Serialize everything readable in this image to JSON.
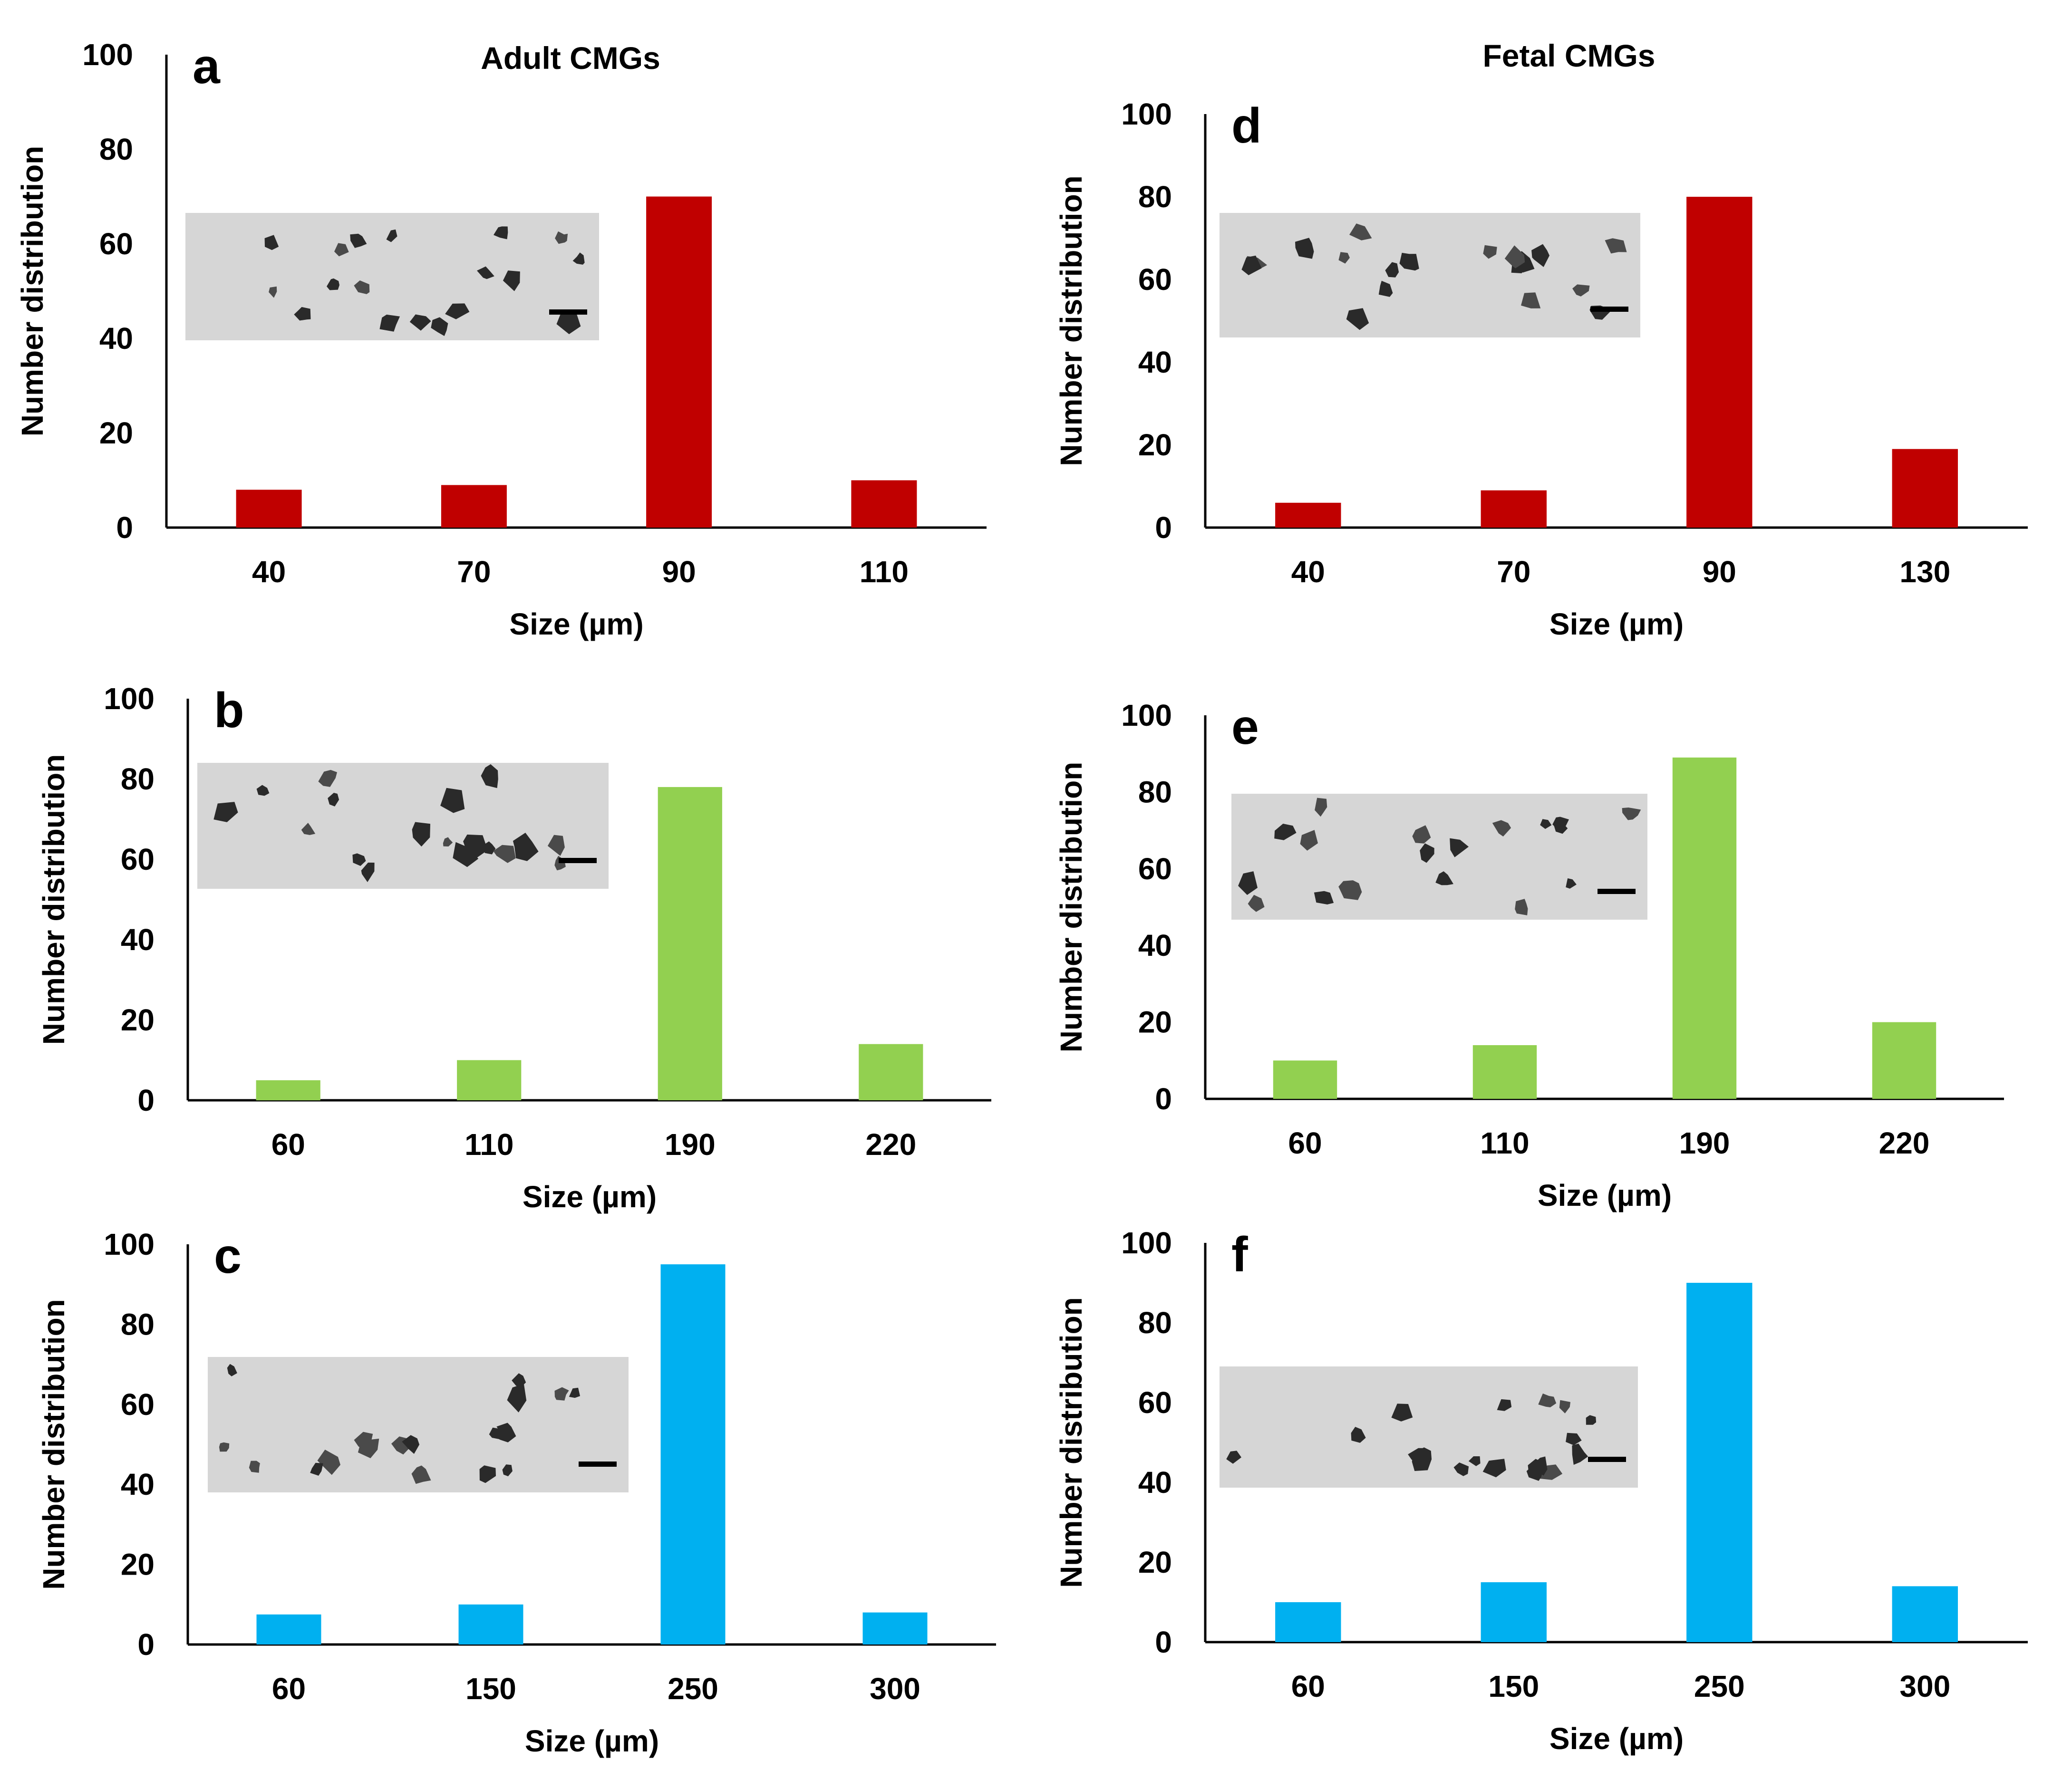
{
  "column_titles": [
    "Adult CMGs",
    "Fetal CMGs"
  ],
  "colors": {
    "red": "#c00000",
    "green": "#92d050",
    "blue": "#00b0f0"
  },
  "chart_data": [
    {
      "panel": "a",
      "type": "bar",
      "column": "Adult CMGs",
      "categories": [
        "40",
        "70",
        "90",
        "110"
      ],
      "values": [
        8,
        9,
        70,
        10
      ],
      "xlabel": "Size (µm)",
      "ylabel": "Number  distribution",
      "ylim": [
        0,
        100
      ],
      "yticks": [
        0,
        20,
        40,
        60,
        80,
        100
      ],
      "color": "#c00000",
      "grid": false
    },
    {
      "panel": "b",
      "type": "bar",
      "column": "Adult CMGs",
      "categories": [
        "60",
        "110",
        "190",
        "220"
      ],
      "values": [
        5,
        10,
        78,
        14
      ],
      "xlabel": "Size (µm)",
      "ylabel": "Number distribution",
      "ylim": [
        0,
        100
      ],
      "yticks": [
        0,
        20,
        40,
        60,
        80,
        100
      ],
      "color": "#92d050",
      "grid": false
    },
    {
      "panel": "c",
      "type": "bar",
      "column": "Adult CMGs",
      "categories": [
        "60",
        "150",
        "250",
        "300"
      ],
      "values": [
        7.5,
        10,
        95,
        8
      ],
      "xlabel": "Size (µm)",
      "ylabel": "Number distribution",
      "ylim": [
        0,
        100
      ],
      "yticks": [
        0,
        20,
        40,
        60,
        80,
        100
      ],
      "color": "#00b0f0",
      "grid": false
    },
    {
      "panel": "d",
      "type": "bar",
      "column": "Fetal CMGs",
      "categories": [
        "40",
        "70",
        "90",
        "130"
      ],
      "values": [
        6,
        9,
        80,
        19
      ],
      "xlabel": "Size (µm)",
      "ylabel": "Number distribution",
      "ylim": [
        0,
        100
      ],
      "yticks": [
        0,
        20,
        40,
        60,
        80,
        100
      ],
      "color": "#c00000",
      "grid": false
    },
    {
      "panel": "e",
      "type": "bar",
      "column": "Fetal CMGs",
      "categories": [
        "60",
        "110",
        "190",
        "220"
      ],
      "values": [
        10,
        14,
        89,
        20
      ],
      "xlabel": "Size (µm)",
      "ylabel": "Number distribution",
      "ylim": [
        0,
        100
      ],
      "yticks": [
        0,
        20,
        40,
        60,
        80,
        100
      ],
      "color": "#92d050",
      "grid": false
    },
    {
      "panel": "f",
      "type": "bar",
      "column": "Fetal CMGs",
      "categories": [
        "60",
        "150",
        "250",
        "300"
      ],
      "values": [
        10,
        15,
        90,
        14
      ],
      "xlabel": "Size (µm)",
      "ylabel": "Number distribution",
      "ylim": [
        0,
        100
      ],
      "yticks": [
        0,
        20,
        40,
        60,
        80,
        100
      ],
      "color": "#00b0f0",
      "grid": false
    }
  ]
}
